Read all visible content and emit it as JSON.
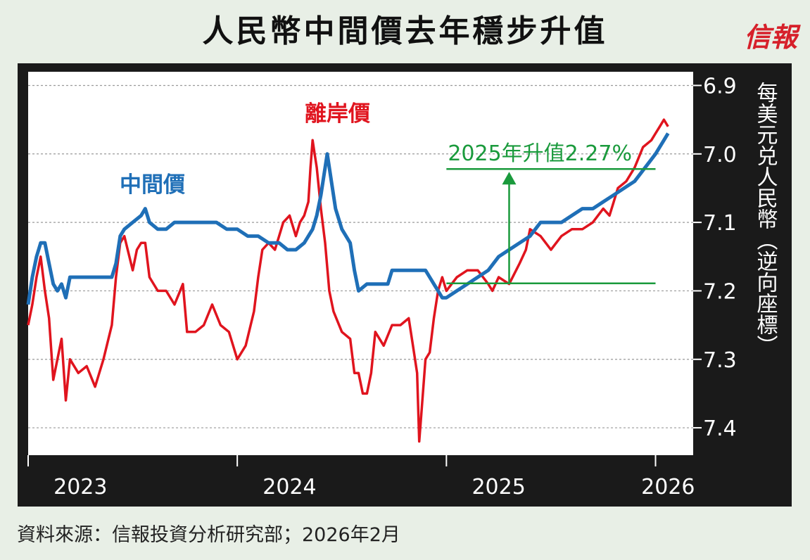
{
  "title": "人民幣中間價去年穩步升值",
  "logo": "信報",
  "source": "資料來源：信報投資分析研究部；2026年2月",
  "colors": {
    "onshore_mid": "#1f6fb7",
    "offshore": "#e0141e",
    "annotation": "#1a9a3c"
  },
  "chart_data": {
    "type": "line",
    "title": "人民幣中間價去年穩步升值",
    "ylabel": "每美元兑人民幣（逆向座標）",
    "y_inverted": true,
    "ylim": [
      6.88,
      7.44
    ],
    "yticks": [
      6.9,
      7.0,
      7.1,
      7.2,
      7.3,
      7.4
    ],
    "ytick_labels": [
      "6.9",
      "7.0",
      "7.1",
      "7.2",
      "7.3",
      "7.4"
    ],
    "xlim": [
      2023.0,
      2026.18
    ],
    "xticks": [
      2023,
      2024,
      2025,
      2026
    ],
    "xtick_labels": [
      "2023",
      "2024",
      "2025",
      "2026"
    ],
    "grid": "horizontal-dotted",
    "series": [
      {
        "name": "中間價",
        "color": "#1f6fb7",
        "points": [
          [
            2023.0,
            7.22
          ],
          [
            2023.02,
            7.18
          ],
          [
            2023.04,
            7.15
          ],
          [
            2023.06,
            7.13
          ],
          [
            2023.08,
            7.13
          ],
          [
            2023.1,
            7.16
          ],
          [
            2023.12,
            7.19
          ],
          [
            2023.14,
            7.2
          ],
          [
            2023.16,
            7.19
          ],
          [
            2023.18,
            7.21
          ],
          [
            2023.2,
            7.18
          ],
          [
            2023.24,
            7.18
          ],
          [
            2023.3,
            7.18
          ],
          [
            2023.36,
            7.18
          ],
          [
            2023.4,
            7.18
          ],
          [
            2023.42,
            7.16
          ],
          [
            2023.44,
            7.12
          ],
          [
            2023.46,
            7.11
          ],
          [
            2023.5,
            7.1
          ],
          [
            2023.54,
            7.09
          ],
          [
            2023.56,
            7.08
          ],
          [
            2023.58,
            7.1
          ],
          [
            2023.62,
            7.11
          ],
          [
            2023.66,
            7.11
          ],
          [
            2023.7,
            7.1
          ],
          [
            2023.75,
            7.1
          ],
          [
            2023.8,
            7.1
          ],
          [
            2023.85,
            7.1
          ],
          [
            2023.9,
            7.1
          ],
          [
            2023.95,
            7.11
          ],
          [
            2024.0,
            7.11
          ],
          [
            2024.05,
            7.12
          ],
          [
            2024.1,
            7.12
          ],
          [
            2024.15,
            7.13
          ],
          [
            2024.2,
            7.13
          ],
          [
            2024.24,
            7.14
          ],
          [
            2024.28,
            7.14
          ],
          [
            2024.32,
            7.13
          ],
          [
            2024.36,
            7.11
          ],
          [
            2024.38,
            7.09
          ],
          [
            2024.4,
            7.06
          ],
          [
            2024.42,
            7.02
          ],
          [
            2024.43,
            7.0
          ],
          [
            2024.45,
            7.04
          ],
          [
            2024.47,
            7.08
          ],
          [
            2024.5,
            7.11
          ],
          [
            2024.52,
            7.12
          ],
          [
            2024.54,
            7.13
          ],
          [
            2024.56,
            7.17
          ],
          [
            2024.58,
            7.2
          ],
          [
            2024.62,
            7.19
          ],
          [
            2024.66,
            7.19
          ],
          [
            2024.7,
            7.19
          ],
          [
            2024.72,
            7.19
          ],
          [
            2024.74,
            7.17
          ],
          [
            2024.8,
            7.17
          ],
          [
            2024.86,
            7.17
          ],
          [
            2024.9,
            7.17
          ],
          [
            2024.92,
            7.18
          ],
          [
            2024.94,
            7.19
          ],
          [
            2024.96,
            7.2
          ],
          [
            2024.98,
            7.21
          ],
          [
            2025.0,
            7.21
          ],
          [
            2025.05,
            7.2
          ],
          [
            2025.1,
            7.19
          ],
          [
            2025.15,
            7.18
          ],
          [
            2025.2,
            7.17
          ],
          [
            2025.25,
            7.15
          ],
          [
            2025.3,
            7.14
          ],
          [
            2025.35,
            7.13
          ],
          [
            2025.4,
            7.12
          ],
          [
            2025.45,
            7.1
          ],
          [
            2025.5,
            7.1
          ],
          [
            2025.55,
            7.1
          ],
          [
            2025.6,
            7.09
          ],
          [
            2025.65,
            7.08
          ],
          [
            2025.7,
            7.08
          ],
          [
            2025.75,
            7.07
          ],
          [
            2025.8,
            7.06
          ],
          [
            2025.85,
            7.05
          ],
          [
            2025.9,
            7.04
          ],
          [
            2025.95,
            7.02
          ],
          [
            2026.0,
            7.0
          ],
          [
            2026.04,
            6.98
          ],
          [
            2026.06,
            6.97
          ]
        ]
      },
      {
        "name": "離岸價",
        "color": "#e0141e",
        "points": [
          [
            2023.0,
            7.25
          ],
          [
            2023.02,
            7.22
          ],
          [
            2023.04,
            7.18
          ],
          [
            2023.06,
            7.15
          ],
          [
            2023.08,
            7.2
          ],
          [
            2023.1,
            7.24
          ],
          [
            2023.12,
            7.33
          ],
          [
            2023.14,
            7.3
          ],
          [
            2023.16,
            7.27
          ],
          [
            2023.18,
            7.36
          ],
          [
            2023.2,
            7.3
          ],
          [
            2023.24,
            7.32
          ],
          [
            2023.28,
            7.31
          ],
          [
            2023.32,
            7.34
          ],
          [
            2023.36,
            7.3
          ],
          [
            2023.4,
            7.25
          ],
          [
            2023.42,
            7.18
          ],
          [
            2023.44,
            7.13
          ],
          [
            2023.46,
            7.12
          ],
          [
            2023.5,
            7.17
          ],
          [
            2023.52,
            7.14
          ],
          [
            2023.54,
            7.13
          ],
          [
            2023.56,
            7.13
          ],
          [
            2023.58,
            7.18
          ],
          [
            2023.62,
            7.2
          ],
          [
            2023.66,
            7.2
          ],
          [
            2023.7,
            7.22
          ],
          [
            2023.74,
            7.19
          ],
          [
            2023.76,
            7.26
          ],
          [
            2023.8,
            7.26
          ],
          [
            2023.84,
            7.25
          ],
          [
            2023.88,
            7.22
          ],
          [
            2023.92,
            7.25
          ],
          [
            2023.96,
            7.26
          ],
          [
            2024.0,
            7.3
          ],
          [
            2024.04,
            7.28
          ],
          [
            2024.08,
            7.23
          ],
          [
            2024.1,
            7.18
          ],
          [
            2024.12,
            7.14
          ],
          [
            2024.15,
            7.13
          ],
          [
            2024.18,
            7.14
          ],
          [
            2024.2,
            7.12
          ],
          [
            2024.22,
            7.1
          ],
          [
            2024.25,
            7.09
          ],
          [
            2024.28,
            7.12
          ],
          [
            2024.3,
            7.1
          ],
          [
            2024.32,
            7.09
          ],
          [
            2024.34,
            7.07
          ],
          [
            2024.35,
            7.02
          ],
          [
            2024.36,
            6.98
          ],
          [
            2024.37,
            7.0
          ],
          [
            2024.38,
            7.02
          ],
          [
            2024.4,
            7.08
          ],
          [
            2024.42,
            7.13
          ],
          [
            2024.44,
            7.2
          ],
          [
            2024.46,
            7.23
          ],
          [
            2024.5,
            7.26
          ],
          [
            2024.54,
            7.27
          ],
          [
            2024.56,
            7.32
          ],
          [
            2024.58,
            7.32
          ],
          [
            2024.6,
            7.35
          ],
          [
            2024.62,
            7.35
          ],
          [
            2024.64,
            7.32
          ],
          [
            2024.66,
            7.26
          ],
          [
            2024.7,
            7.28
          ],
          [
            2024.74,
            7.25
          ],
          [
            2024.78,
            7.25
          ],
          [
            2024.82,
            7.24
          ],
          [
            2024.84,
            7.28
          ],
          [
            2024.86,
            7.32
          ],
          [
            2024.87,
            7.42
          ],
          [
            2024.88,
            7.38
          ],
          [
            2024.9,
            7.3
          ],
          [
            2024.92,
            7.29
          ],
          [
            2024.94,
            7.24
          ],
          [
            2024.96,
            7.2
          ],
          [
            2024.98,
            7.18
          ],
          [
            2025.0,
            7.2
          ],
          [
            2025.05,
            7.18
          ],
          [
            2025.1,
            7.17
          ],
          [
            2025.15,
            7.17
          ],
          [
            2025.2,
            7.19
          ],
          [
            2025.22,
            7.2
          ],
          [
            2025.25,
            7.18
          ],
          [
            2025.3,
            7.19
          ],
          [
            2025.35,
            7.16
          ],
          [
            2025.38,
            7.14
          ],
          [
            2025.4,
            7.11
          ],
          [
            2025.45,
            7.12
          ],
          [
            2025.5,
            7.14
          ],
          [
            2025.55,
            7.12
          ],
          [
            2025.6,
            7.11
          ],
          [
            2025.65,
            7.11
          ],
          [
            2025.7,
            7.1
          ],
          [
            2025.75,
            7.08
          ],
          [
            2025.78,
            7.09
          ],
          [
            2025.8,
            7.07
          ],
          [
            2025.82,
            7.05
          ],
          [
            2025.86,
            7.04
          ],
          [
            2025.9,
            7.02
          ],
          [
            2025.94,
            6.99
          ],
          [
            2025.98,
            6.98
          ],
          [
            2026.0,
            6.97
          ],
          [
            2026.02,
            6.96
          ],
          [
            2026.04,
            6.95
          ],
          [
            2026.06,
            6.96
          ]
        ]
      }
    ],
    "series_labels": [
      "中間價",
      "離岸價"
    ],
    "annotation": {
      "text": "2025年升值2.27%",
      "x_start": 2025.0,
      "x_end": 2026.0,
      "y_top": 7.022,
      "y_bottom": 7.189,
      "arrow_x": 2025.3
    }
  }
}
